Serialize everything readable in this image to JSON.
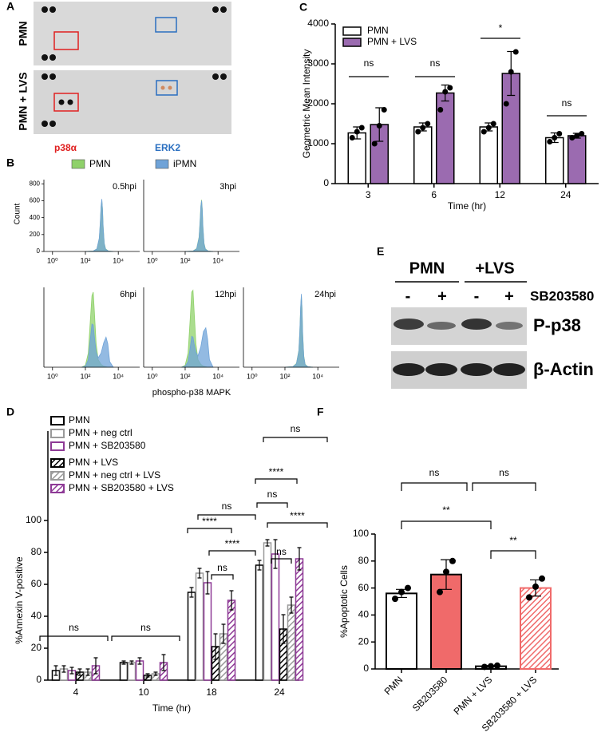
{
  "panel_a": {
    "panel_label": "A",
    "rows": [
      "PMN",
      "PMN + LVS"
    ],
    "spots": [
      "p38α",
      "ERK2"
    ]
  },
  "panel_e": {
    "panel_label": "E",
    "groups": [
      "PMN",
      "+LVS"
    ],
    "treatment": [
      "-",
      "+",
      "-",
      "+"
    ],
    "treatment_label": "SB203580",
    "bands": [
      "P-p38",
      "β-Actin"
    ]
  },
  "chart_data": [
    {
      "type": "density",
      "panel_label": "B",
      "series": [
        {
          "name": "PMN",
          "color": "#8fd16a"
        },
        {
          "name": "iPMN",
          "color": "#6fa3d8"
        }
      ],
      "x_label": "phospho-p38 MAPK",
      "y_label": "Count",
      "log_x": true,
      "xlim": [
        0.3,
        200000
      ],
      "xticks": [
        {
          "value": 1,
          "label": "10⁰"
        },
        {
          "value": 100,
          "label": "10²"
        },
        {
          "value": 10000,
          "label": "10⁴"
        }
      ],
      "ylim": [
        0,
        850
      ],
      "yticks": [
        0,
        200,
        400,
        600,
        800
      ],
      "panels": [
        {
          "label": "0.5hpi",
          "x": [
            100,
            300,
            500,
            700,
            800,
            900,
            1000,
            1100,
            1200,
            1400,
            1700,
            2500,
            5000
          ],
          "values": [
            [
              0,
              5,
              30,
              150,
              320,
              520,
              600,
              500,
              300,
              100,
              30,
              5,
              0
            ],
            [
              0,
              5,
              30,
              160,
              340,
              540,
              620,
              490,
              290,
              90,
              25,
              5,
              0
            ]
          ]
        },
        {
          "label": "3hpi",
          "x": [
            100,
            300,
            500,
            700,
            800,
            900,
            1000,
            1100,
            1200,
            1400,
            1700,
            2500,
            5000
          ],
          "values": [
            [
              0,
              5,
              35,
              170,
              350,
              540,
              610,
              500,
              300,
              100,
              30,
              5,
              0
            ],
            [
              0,
              5,
              30,
              160,
              330,
              530,
              600,
              480,
              280,
              90,
              25,
              5,
              0
            ]
          ]
        },
        {
          "label": "6hpi",
          "x": [
            60,
            100,
            150,
            200,
            250,
            300,
            350,
            450,
            600,
            900,
            1300,
            1800,
            2300,
            3000,
            5000
          ],
          "values": [
            [
              0,
              20,
              150,
              500,
              760,
              800,
              600,
              250,
              80,
              30,
              10,
              5,
              0,
              0,
              0
            ],
            [
              0,
              10,
              80,
              300,
              460,
              450,
              330,
              160,
              100,
              150,
              260,
              320,
              250,
              60,
              0
            ]
          ]
        },
        {
          "label": "12hpi",
          "x": [
            60,
            100,
            150,
            200,
            250,
            300,
            350,
            450,
            600,
            900,
            1300,
            1800,
            2300,
            3000,
            5000
          ],
          "values": [
            [
              0,
              20,
              150,
              500,
              800,
              820,
              600,
              250,
              80,
              30,
              10,
              5,
              0,
              0,
              0
            ],
            [
              0,
              10,
              60,
              200,
              330,
              320,
              250,
              160,
              120,
              220,
              380,
              420,
              300,
              80,
              0
            ]
          ]
        },
        {
          "label": "24hpi",
          "x": [
            100,
            300,
            500,
            700,
            800,
            900,
            1000,
            1100,
            1200,
            1400,
            1700,
            2500,
            5000
          ],
          "values": [
            [
              0,
              5,
              40,
              180,
              380,
              620,
              760,
              620,
              360,
              120,
              30,
              5,
              0
            ],
            [
              0,
              5,
              35,
              170,
              370,
              640,
              780,
              600,
              340,
              110,
              25,
              5,
              0
            ]
          ]
        }
      ]
    },
    {
      "type": "bar",
      "panel_label": "C",
      "categories": [
        "3",
        "6",
        "12",
        "24"
      ],
      "x_label": "Time (hr)",
      "y_label": "Geometric Mean Intensity",
      "ylim": [
        0,
        4000
      ],
      "yticks": [
        0,
        1000,
        2000,
        3000,
        4000
      ],
      "legend": "top-left",
      "series": [
        {
          "name": "PMN",
          "color": "#ffffff",
          "values": [
            1270,
            1420,
            1420,
            1150
          ],
          "errors": [
            150,
            100,
            100,
            120
          ],
          "points": [
            [
              1150,
              1300,
              1400
            ],
            [
              1300,
              1400,
              1500
            ],
            [
              1300,
              1400,
              1500
            ],
            [
              1050,
              1150,
              1250
            ]
          ]
        },
        {
          "name": "PMN + LVS",
          "color": "#9b6bb0",
          "values": [
            1480,
            2270,
            2760,
            1200
          ],
          "errors": [
            420,
            200,
            550,
            60
          ],
          "points": [
            [
              1000,
              1450,
              1850
            ],
            [
              1850,
              2300,
              2400
            ],
            [
              2000,
              2800,
              3300
            ],
            [
              1150,
              1200,
              1250
            ]
          ]
        }
      ],
      "annotations": [
        "ns",
        "ns",
        "*",
        "ns"
      ]
    },
    {
      "type": "bar",
      "panel_label": "D",
      "categories": [
        "4",
        "10",
        "18",
        "24"
      ],
      "x_label": "Time (hr)",
      "y_label": "%Annexin V-positive",
      "ylim": [
        0,
        100
      ],
      "yticks": [
        0,
        20,
        40,
        60,
        80,
        100
      ],
      "series": [
        {
          "name": "PMN",
          "color": "#000000",
          "hatch": false,
          "values": [
            6,
            11,
            55,
            72
          ],
          "errors": [
            3,
            1,
            3,
            3
          ]
        },
        {
          "name": "PMN + neg ctrl",
          "color": "#9a9a9a",
          "hatch": false,
          "values": [
            7,
            11,
            67,
            86
          ],
          "errors": [
            2,
            1,
            3,
            2
          ]
        },
        {
          "name": "PMN + SB203580",
          "color": "#8e3a96",
          "hatch": false,
          "values": [
            6,
            12,
            61,
            79
          ],
          "errors": [
            2,
            2,
            7,
            9
          ]
        },
        {
          "name": "PMN + LVS",
          "color": "#000000",
          "hatch": true,
          "values": [
            5,
            3,
            21,
            32
          ],
          "errors": [
            2,
            1,
            8,
            9
          ]
        },
        {
          "name": "PMN + neg ctrl + LVS",
          "color": "#9a9a9a",
          "hatch": true,
          "values": [
            5,
            4,
            29,
            47
          ],
          "errors": [
            2,
            1,
            6,
            5
          ]
        },
        {
          "name": "PMN + SB203580 + LVS",
          "color": "#8e3a96",
          "hatch": true,
          "values": [
            9,
            11,
            50,
            76
          ],
          "errors": [
            5,
            5,
            6,
            7
          ]
        }
      ],
      "annotations": [
        "ns",
        "ns",
        "****",
        "ns",
        "****",
        "ns",
        "ns",
        "****",
        "ns",
        "****",
        "ns"
      ]
    },
    {
      "type": "bar",
      "panel_label": "F",
      "categories": [
        "PMN",
        "SB203580",
        "PMN + LVS",
        "SB203580 + LVS"
      ],
      "y_label": "%Apoptotic Cells",
      "ylim": [
        0,
        100
      ],
      "yticks": [
        0,
        20,
        40,
        60,
        80,
        100
      ],
      "values": [
        56,
        70,
        2,
        60
      ],
      "errors": [
        3,
        11,
        0.5,
        6
      ],
      "colors": [
        "#ffffff",
        "#f06a6a",
        "#ffffff",
        "#f06a6a"
      ],
      "hatch": [
        false,
        false,
        false,
        true
      ],
      "points": [
        [
          52,
          57,
          60
        ],
        [
          57,
          72,
          80
        ],
        [
          1.5,
          2,
          2.5
        ],
        [
          53,
          61,
          67
        ]
      ],
      "annotations": [
        "ns",
        "ns",
        "**",
        "**"
      ]
    }
  ]
}
